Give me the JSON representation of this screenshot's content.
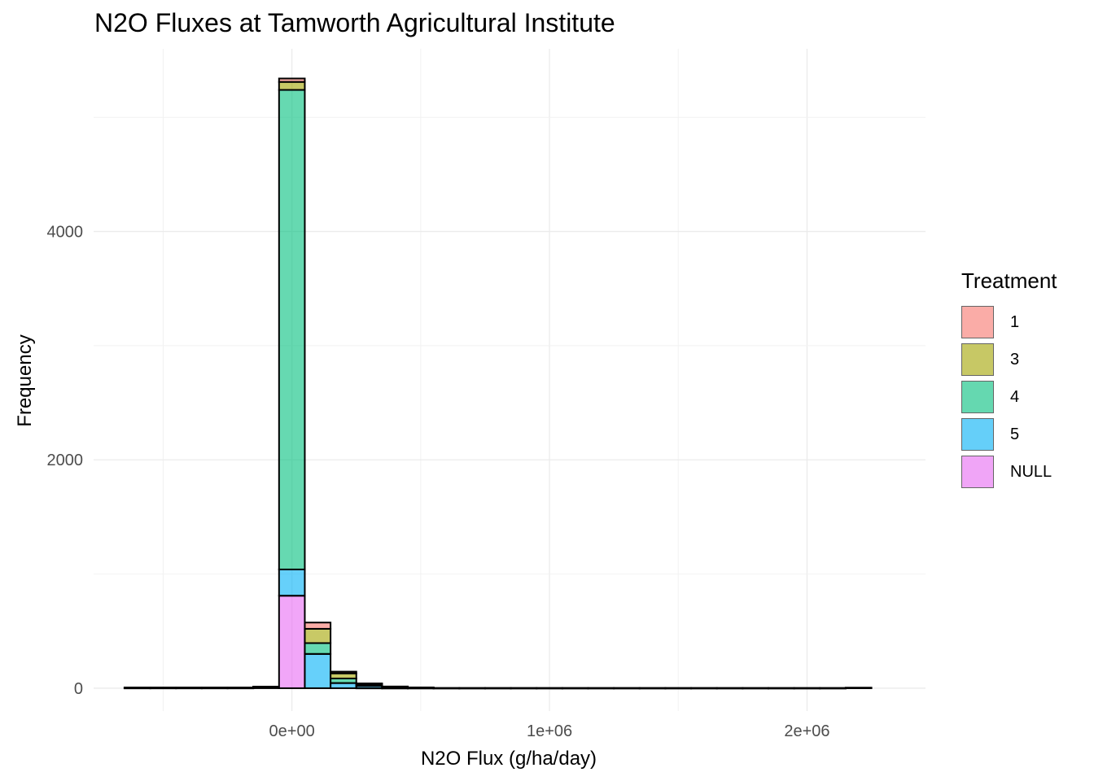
{
  "title": "N2O Fluxes at Tamworth Agricultural Institute",
  "chart_data": {
    "type": "histogram-stacked",
    "title": "N2O Fluxes at Tamworth Agricultural Institute",
    "xlabel": "N2O Flux (g/ha/day)",
    "ylabel": "Frequency",
    "xlim": [
      -770000,
      2460000
    ],
    "ylim": [
      -200,
      5600
    ],
    "x_ticks": [
      {
        "value": 0,
        "label": "0e+00"
      },
      {
        "value": 1000000,
        "label": "1e+06"
      },
      {
        "value": 2000000,
        "label": "2e+06"
      }
    ],
    "y_ticks": [
      {
        "value": 0,
        "label": "0"
      },
      {
        "value": 2000,
        "label": "2000"
      },
      {
        "value": 4000,
        "label": "4000"
      }
    ],
    "grid": true,
    "legend": {
      "title": "Treatment",
      "position": "right"
    },
    "bin_width": 100000,
    "series": [
      {
        "name": "1",
        "color": "#F8766D"
      },
      {
        "name": "3",
        "color": "#A3A500"
      },
      {
        "name": "4",
        "color": "#00BF7D"
      },
      {
        "name": "5",
        "color": "#00B0F6"
      },
      {
        "name": "NULL",
        "color": "#E76BF3"
      }
    ],
    "bins": [
      {
        "x": -600000,
        "counts": [
          1,
          1,
          1,
          1,
          2
        ]
      },
      {
        "x": -500000,
        "counts": [
          1,
          1,
          1,
          1,
          2
        ]
      },
      {
        "x": -400000,
        "counts": [
          1,
          1,
          1,
          1,
          2
        ]
      },
      {
        "x": -300000,
        "counts": [
          1,
          1,
          1,
          1,
          2
        ]
      },
      {
        "x": -200000,
        "counts": [
          1,
          1,
          1,
          1,
          2
        ]
      },
      {
        "x": -100000,
        "counts": [
          2,
          2,
          2,
          3,
          5
        ]
      },
      {
        "x": 0,
        "counts": [
          30,
          70,
          4200,
          230,
          810
        ]
      },
      {
        "x": 100000,
        "counts": [
          55,
          125,
          95,
          300,
          0
        ]
      },
      {
        "x": 200000,
        "counts": [
          15,
          45,
          40,
          45,
          0
        ]
      },
      {
        "x": 300000,
        "counts": [
          4,
          8,
          8,
          20,
          2
        ]
      },
      {
        "x": 400000,
        "counts": [
          2,
          3,
          3,
          6,
          1
        ]
      },
      {
        "x": 500000,
        "counts": [
          1,
          1,
          1,
          3,
          1
        ]
      },
      {
        "x": 600000,
        "counts": [
          0,
          0,
          0,
          1,
          1
        ]
      },
      {
        "x": 700000,
        "counts": [
          0,
          0,
          0,
          1,
          1
        ]
      },
      {
        "x": 800000,
        "counts": [
          0,
          0,
          0,
          1,
          1
        ]
      },
      {
        "x": 900000,
        "counts": [
          0,
          0,
          0,
          1,
          1
        ]
      },
      {
        "x": 1000000,
        "counts": [
          0,
          0,
          0,
          1,
          1
        ]
      },
      {
        "x": 1100000,
        "counts": [
          0,
          0,
          0,
          1,
          1
        ]
      },
      {
        "x": 1200000,
        "counts": [
          0,
          0,
          0,
          1,
          1
        ]
      },
      {
        "x": 1300000,
        "counts": [
          0,
          0,
          0,
          1,
          1
        ]
      },
      {
        "x": 1400000,
        "counts": [
          0,
          0,
          0,
          1,
          1
        ]
      },
      {
        "x": 1500000,
        "counts": [
          0,
          0,
          0,
          1,
          1
        ]
      },
      {
        "x": 1600000,
        "counts": [
          0,
          0,
          0,
          1,
          1
        ]
      },
      {
        "x": 1700000,
        "counts": [
          0,
          0,
          0,
          1,
          1
        ]
      },
      {
        "x": 1800000,
        "counts": [
          0,
          0,
          0,
          1,
          1
        ]
      },
      {
        "x": 1900000,
        "counts": [
          0,
          0,
          0,
          1,
          1
        ]
      },
      {
        "x": 2000000,
        "counts": [
          0,
          0,
          0,
          1,
          1
        ]
      },
      {
        "x": 2100000,
        "counts": [
          0,
          0,
          0,
          1,
          1
        ]
      },
      {
        "x": 2200000,
        "counts": [
          0,
          0,
          0,
          2,
          3
        ]
      }
    ]
  }
}
